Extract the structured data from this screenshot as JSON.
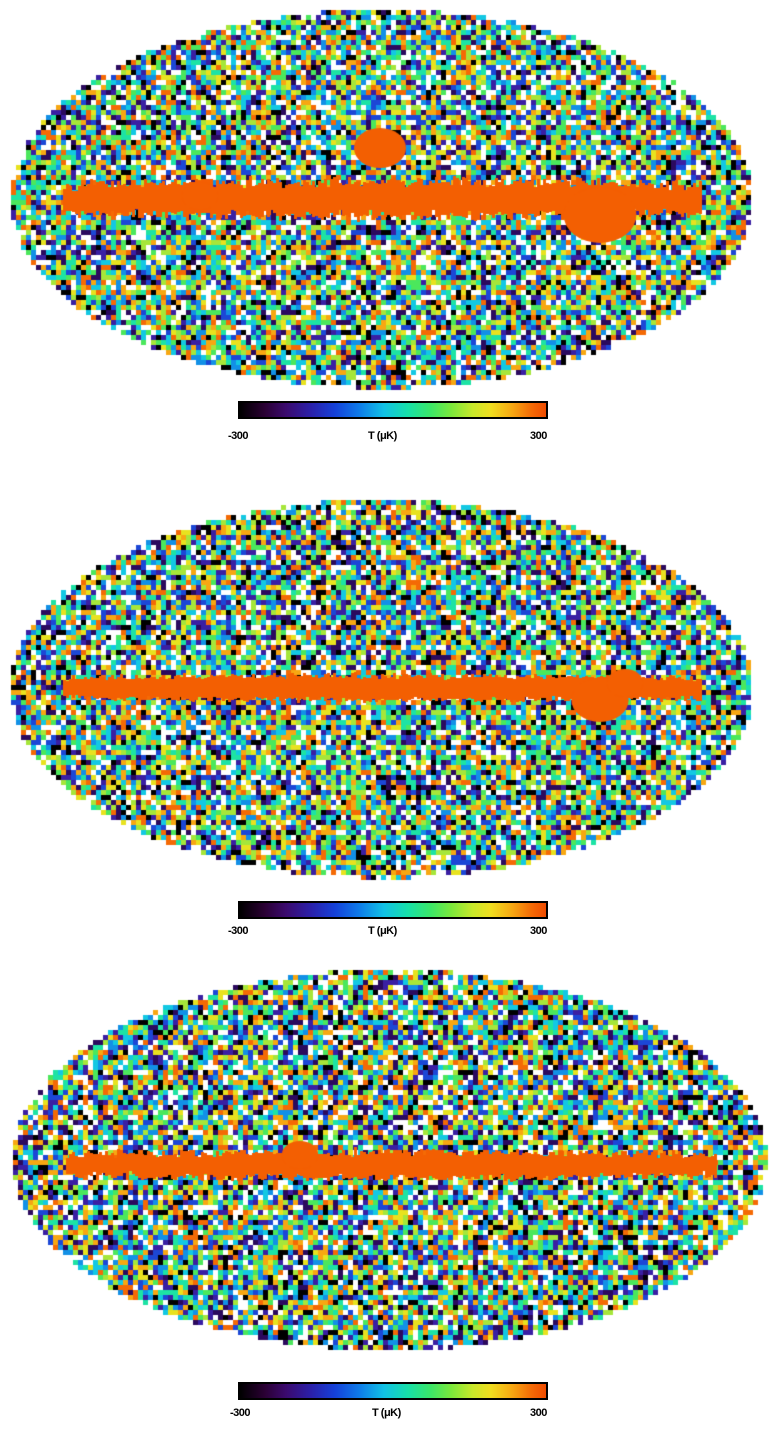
{
  "colors": {
    "palette": [
      "#000000",
      "#2b0a5e",
      "#3a1fa3",
      "#1c47d6",
      "#1290e6",
      "#13c8e3",
      "#1de3a4",
      "#4be75c",
      "#a6e63a",
      "#e8e21f",
      "#f7a712",
      "#f46a05",
      "#ffffff"
    ],
    "galactic_plane": "#f35f02"
  },
  "maps": [
    {
      "colorbar": {
        "min_label": "-300",
        "axis_label": "T (μK)",
        "max_label": "300"
      }
    },
    {
      "colorbar": {
        "min_label": "-300",
        "axis_label": "T (μK)",
        "max_label": "300"
      }
    },
    {
      "colorbar": {
        "min_label": "-300",
        "axis_label": "T (μK)",
        "max_label": "300"
      }
    }
  ]
}
